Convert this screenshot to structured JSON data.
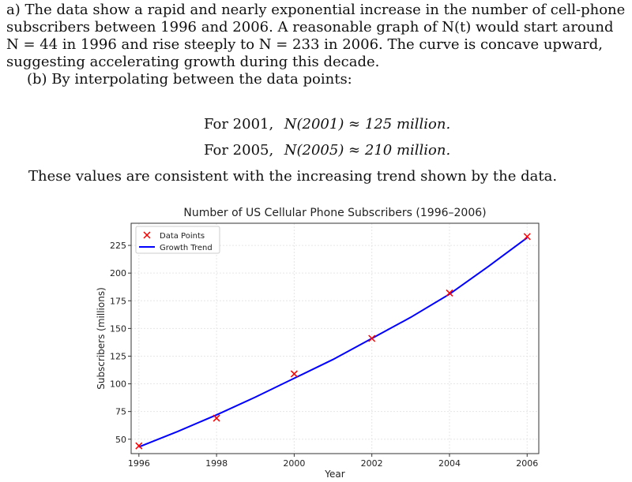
{
  "text": {
    "part_a": "a) The data show a rapid and nearly exponential increase in the number of cell-phone subscribers between 1996 and 2006. A reasonable graph of N(t) would start around N = 44 in 1996 and rise steeply to N = 233 in 2006. The curve is concave upward, suggesting accelerating growth during this decade.",
    "part_b_intro": "(b) By interpolating between the data points:",
    "eq1_lead": "For 2001,",
    "eq1_expr": "N(2001) ≈ 125 million.",
    "eq2_lead": "For 2005,",
    "eq2_expr": "N(2005) ≈ 210 million.",
    "conclusion": "These values are consistent with the increasing trend shown by the data."
  },
  "chart_data": {
    "type": "scatter+line",
    "title": "Number of US Cellular Phone Subscribers (1996–2006)",
    "xlabel": "Year",
    "ylabel": "Subscribers (millions)",
    "xlim": [
      1995.8,
      2006.3
    ],
    "ylim": [
      37,
      245
    ],
    "xticks": [
      1996,
      1998,
      2000,
      2002,
      2004,
      2006
    ],
    "yticks": [
      50,
      75,
      100,
      125,
      150,
      175,
      200,
      225
    ],
    "grid": true,
    "legend_position": "top-left",
    "series": [
      {
        "name": "Data Points",
        "kind": "scatter",
        "marker": "x",
        "color": "#ff0000",
        "x": [
          1996,
          1998,
          2000,
          2002,
          2004,
          2006
        ],
        "y": [
          44,
          69,
          109,
          141,
          182,
          233
        ]
      },
      {
        "name": "Growth Trend",
        "kind": "line",
        "color": "#0000ff",
        "x": [
          1996,
          1997,
          1998,
          1999,
          2000,
          2001,
          2002,
          2003,
          2004,
          2005,
          2006
        ],
        "y": [
          43,
          57,
          72,
          88,
          105,
          122,
          141,
          160,
          181,
          206,
          232
        ]
      }
    ]
  }
}
